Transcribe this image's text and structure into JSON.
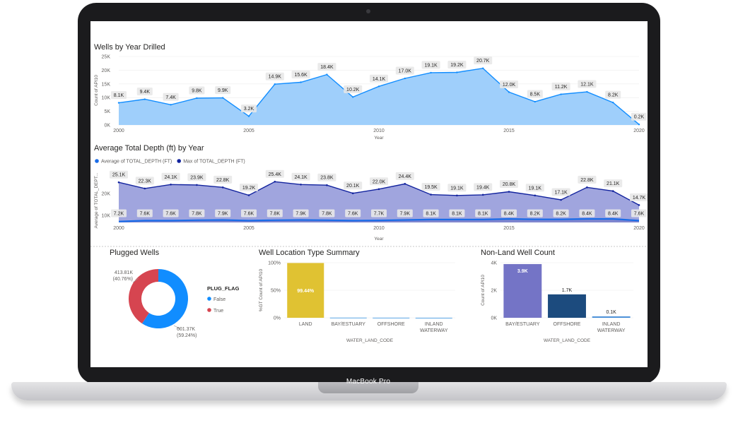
{
  "device": {
    "brand_label": "MacBook Pro"
  },
  "colors": {
    "area1_fill": "#9fcffb",
    "area1_line": "#118dff",
    "avg_line": "#1a6ce8",
    "max_line": "#12239e",
    "area2_fill": "#8f95d8",
    "label_bg": "#e8e8e8",
    "donut_false": "#118dff",
    "donut_true": "#d64550",
    "land_bar": "#e0c232",
    "other_bar": "#5aa6e6",
    "bay_bar": "#7474c6",
    "offshore_bar": "#1c4b7e",
    "inland_bar": "#4a90d9"
  },
  "chart_data": [
    {
      "type": "area",
      "title": "Wells by Year Drilled",
      "xlabel": "Year",
      "ylabel": "Count of API10",
      "x": [
        2000,
        2001,
        2002,
        2003,
        2004,
        2005,
        2006,
        2007,
        2008,
        2009,
        2010,
        2011,
        2012,
        2013,
        2014,
        2015,
        2016,
        2017,
        2018,
        2019,
        2020
      ],
      "values": [
        8100,
        9400,
        7400,
        9800,
        9900,
        3200,
        14900,
        15600,
        18400,
        10200,
        14100,
        17000,
        19100,
        19200,
        20700,
        12000,
        8500,
        11200,
        12100,
        8200,
        200
      ],
      "data_labels": [
        "8.1K",
        "9.4K",
        "7.4K",
        "9.8K",
        "9.9K",
        "3.2K",
        "14.9K",
        "15.6K",
        "18.4K",
        "10.2K",
        "14.1K",
        "17.0K",
        "19.1K",
        "19.2K",
        "20.7K",
        "12.0K",
        "8.5K",
        "11.2K",
        "12.1K",
        "8.2K",
        "0.2K"
      ],
      "ylim": [
        0,
        25000
      ],
      "y_ticks": [
        0,
        5000,
        10000,
        15000,
        20000,
        25000
      ],
      "y_tick_labels": [
        "0K",
        "5K",
        "10K",
        "15K",
        "20K",
        "25K"
      ],
      "x_ticks": [
        2000,
        2005,
        2010,
        2015,
        2020
      ],
      "x_tick_labels": [
        "2000",
        "2005",
        "2010",
        "2015",
        "2020"
      ]
    },
    {
      "type": "line",
      "title": "Average Total Depth (ft) by Year",
      "xlabel": "Year",
      "ylabel": "Average of TOTAL_DEPT...",
      "legend_position": "top-left",
      "x": [
        2000,
        2001,
        2002,
        2003,
        2004,
        2005,
        2006,
        2007,
        2008,
        2009,
        2010,
        2011,
        2012,
        2013,
        2014,
        2015,
        2016,
        2017,
        2018,
        2019,
        2020
      ],
      "series": [
        {
          "name": "Average of TOTAL_DEPTH (FT)",
          "values": [
            7200,
            7600,
            7600,
            7800,
            7900,
            7600,
            7800,
            7900,
            7800,
            7600,
            7700,
            7900,
            8100,
            8100,
            8100,
            8400,
            8200,
            8200,
            8400,
            8400,
            7600
          ],
          "data_labels": [
            "7.2K",
            "7.6K",
            "7.6K",
            "7.8K",
            "7.9K",
            "7.6K",
            "7.8K",
            "7.9K",
            "7.8K",
            "7.6K",
            "7.7K",
            "7.9K",
            "8.1K",
            "8.1K",
            "8.1K",
            "8.4K",
            "8.2K",
            "8.2K",
            "8.4K",
            "8.4K",
            "7.6K"
          ]
        },
        {
          "name": "Max of TOTAL_DEPTH (FT)",
          "values": [
            25100,
            22300,
            24100,
            23900,
            22800,
            19200,
            25400,
            24100,
            23800,
            20100,
            22000,
            24400,
            19500,
            19100,
            19400,
            20800,
            19100,
            17100,
            22800,
            21100,
            14700
          ],
          "data_labels": [
            "25.1K",
            "22.3K",
            "24.1K",
            "23.9K",
            "22.8K",
            "19.2K",
            "25.4K",
            "24.1K",
            "23.8K",
            "20.1K",
            "22.0K",
            "24.4K",
            "19.5K",
            "19.1K",
            "19.4K",
            "20.8K",
            "19.1K",
            "17.1K",
            "22.8K",
            "21.1K",
            "14.7K"
          ]
        }
      ],
      "y_ticks": [
        10000,
        20000
      ],
      "y_tick_labels": [
        "10K",
        "20K"
      ],
      "x_ticks": [
        2000,
        2005,
        2010,
        2015,
        2020
      ],
      "x_tick_labels": [
        "2000",
        "2005",
        "2010",
        "2015",
        "2020"
      ]
    },
    {
      "type": "pie",
      "title": "Plugged Wells",
      "legend_title": "PLUG_FLAG",
      "legend_position": "right",
      "categories": [
        "False",
        "True"
      ],
      "values": [
        601370,
        413810
      ],
      "percents": [
        59.24,
        40.76
      ],
      "labels": [
        "601.37K",
        "413.81K"
      ],
      "percent_labels": [
        "(59.24%)",
        "(40.76%)"
      ]
    },
    {
      "type": "bar",
      "title": "Well Location Type Summary",
      "xlabel": "WATER_LAND_CODE",
      "ylabel": "%GT Count of API10",
      "categories": [
        "LAND",
        "BAY/ESTUARY",
        "OFFSHORE",
        "INLAND WATERWAY"
      ],
      "category_lines": [
        [
          "LAND"
        ],
        [
          "BAY/ESTUARY"
        ],
        [
          "OFFSHORE"
        ],
        [
          "INLAND",
          "WATERWAY"
        ]
      ],
      "values": [
        99.44,
        0.3,
        0.2,
        0.06
      ],
      "data_labels": [
        "99.44%",
        "",
        "",
        ""
      ],
      "ylim": [
        0,
        100
      ],
      "y_ticks": [
        0,
        50,
        100
      ],
      "y_tick_labels": [
        "0%",
        "50%",
        "100%"
      ]
    },
    {
      "type": "bar",
      "title": "Non-Land Well Count",
      "xlabel": "WATER_LAND_CODE",
      "ylabel": "Count of API10",
      "categories": [
        "BAY/ESTUARY",
        "OFFSHORE",
        "INLAND WATERWAY"
      ],
      "category_lines": [
        [
          "BAY/ESTUARY"
        ],
        [
          "OFFSHORE"
        ],
        [
          "INLAND",
          "WATERWAY"
        ]
      ],
      "values": [
        3900,
        1700,
        100
      ],
      "data_labels": [
        "3.9K",
        "1.7K",
        "0.1K"
      ],
      "ylim": [
        0,
        4000
      ],
      "y_ticks": [
        0,
        2000,
        4000
      ],
      "y_tick_labels": [
        "0K",
        "2K",
        "4K"
      ]
    }
  ]
}
